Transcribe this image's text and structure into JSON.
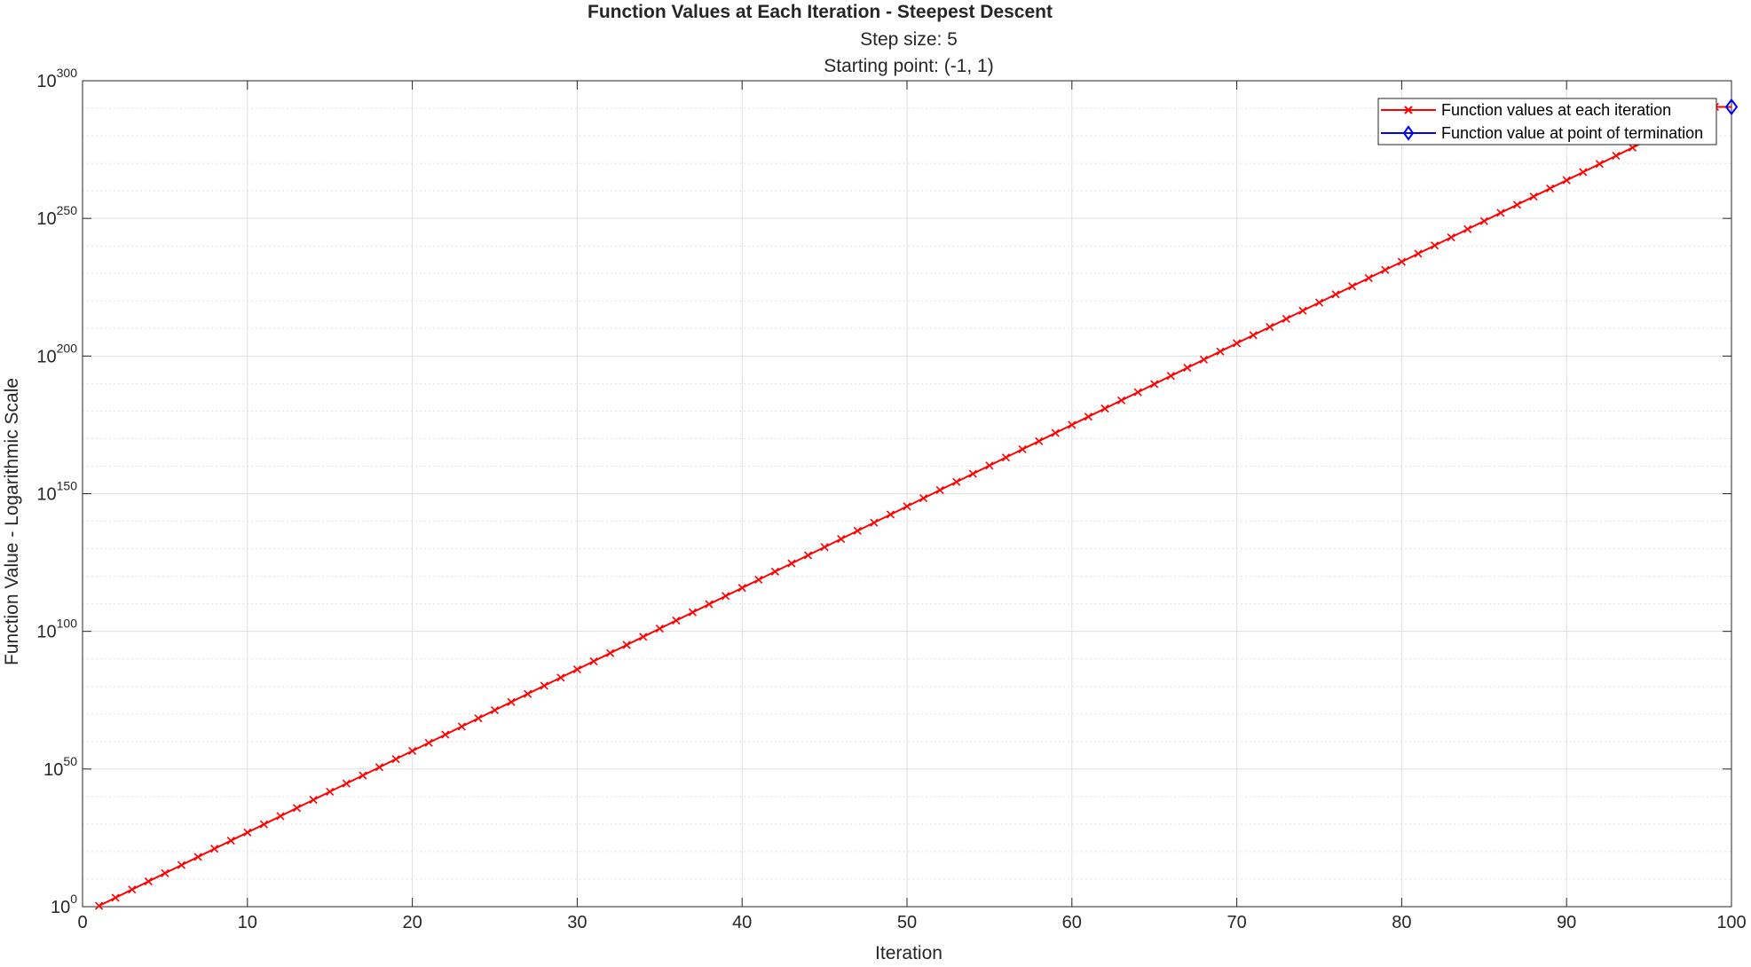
{
  "chart_data": {
    "type": "line",
    "title": "Function Values at Each Iteration - Steepest Descent",
    "subtitle_lines": [
      "Step size: 5",
      "Starting point: (-1, 1)"
    ],
    "xlabel": "Iteration",
    "ylabel": "Function Value - Logarithmic Scale",
    "xlim": [
      0,
      100
    ],
    "ylim_exponent": [
      0,
      300
    ],
    "y_scale": "log",
    "x_ticks": [
      0,
      10,
      20,
      30,
      40,
      50,
      60,
      70,
      80,
      90,
      100
    ],
    "y_ticks": [
      {
        "base": "10",
        "exp": "0",
        "value_exponent": 0
      },
      {
        "base": "10",
        "exp": "50",
        "value_exponent": 50
      },
      {
        "base": "10",
        "exp": "100",
        "value_exponent": 100
      },
      {
        "base": "10",
        "exp": "150",
        "value_exponent": 150
      },
      {
        "base": "10",
        "exp": "200",
        "value_exponent": 200
      },
      {
        "base": "10",
        "exp": "250",
        "value_exponent": 250
      },
      {
        "base": "10",
        "exp": "300",
        "value_exponent": 300
      }
    ],
    "grid": true,
    "legend_position": "top-right",
    "series": [
      {
        "name": "Function values at each iteration",
        "color": "#ff0000",
        "marker": "x",
        "x_start": 1,
        "x_end": 99,
        "log10_y_start": 0.3,
        "log10_y_end": 290.5
      },
      {
        "name": "Function value at point of termination",
        "color": "#0000ff",
        "marker": "diamond",
        "x": [
          100
        ],
        "log10_y": [
          290.5
        ]
      }
    ]
  }
}
